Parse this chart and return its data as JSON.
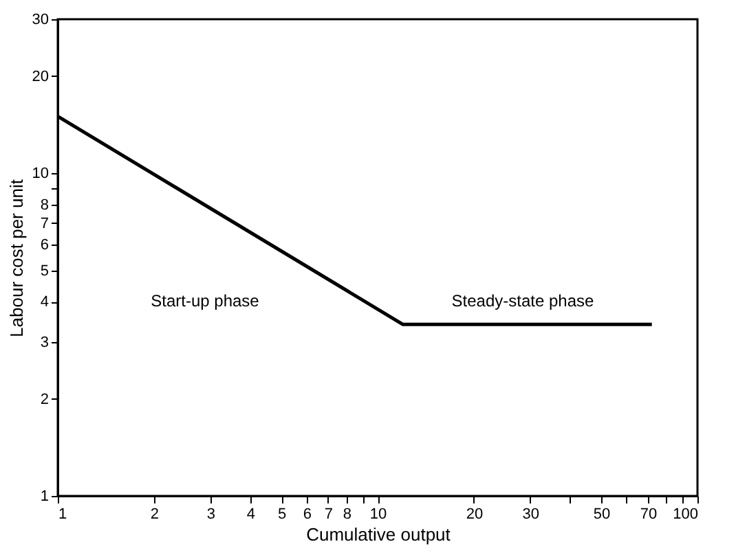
{
  "chart_data": {
    "type": "line",
    "xlabel": "Cumulative output",
    "ylabel": "Labour cost per unit",
    "x": [
      1,
      12,
      72
    ],
    "series": [
      {
        "color": "#000000",
        "values": [
          15,
          3.4,
          3.4
        ]
      }
    ],
    "log": "xy",
    "grid": false,
    "marker": "none",
    "line_style": "solid",
    "xlim": [
      1,
      100
    ],
    "ylim": [
      1,
      30
    ],
    "xticks": [
      1,
      2,
      3,
      4,
      5,
      6,
      7,
      8,
      {
        "value": 9,
        "label": null
      },
      10,
      20,
      30,
      {
        "value": 40,
        "label": null
      },
      50,
      {
        "value": 60,
        "label": null
      },
      70,
      {
        "value": 80,
        "label": null
      },
      {
        "value": 90,
        "label": null
      },
      100
    ],
    "yticks": [
      1,
      2,
      3,
      4,
      5,
      6,
      7,
      8,
      {
        "value": 9,
        "label": null
      },
      10,
      20,
      30
    ],
    "annotations": [
      "Start-up phase",
      "Steady-state phase"
    ]
  }
}
